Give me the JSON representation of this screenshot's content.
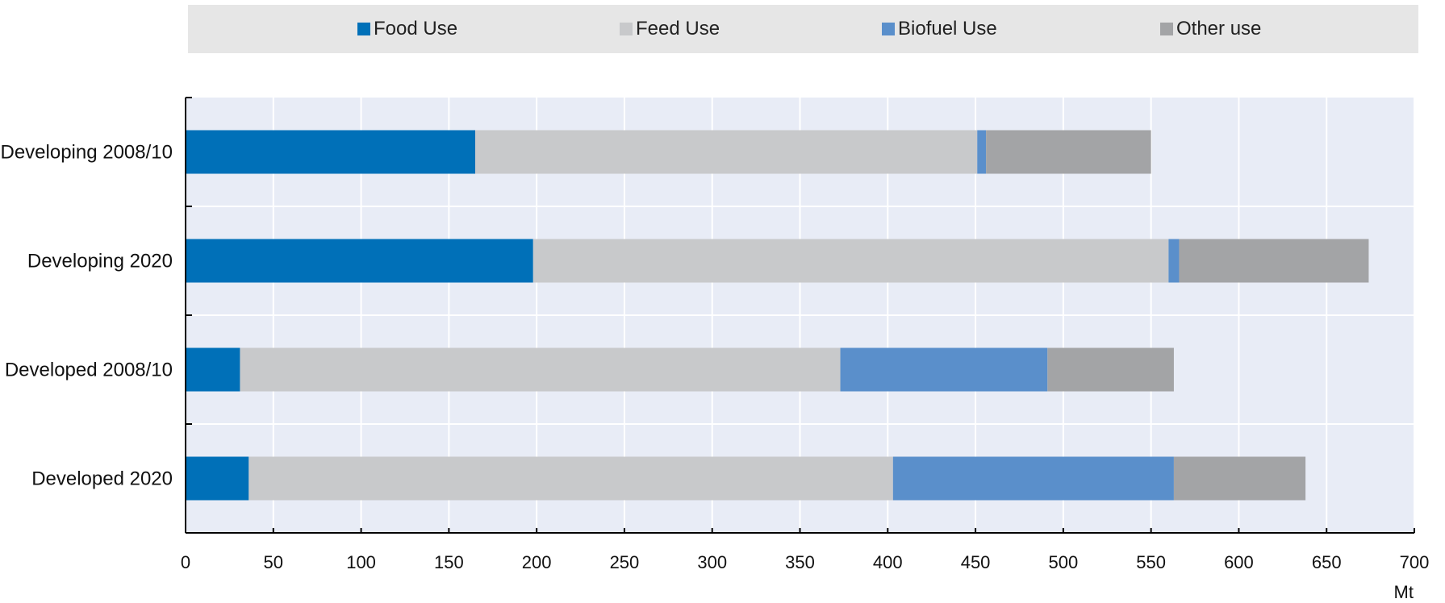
{
  "chart_data": {
    "type": "bar",
    "orientation": "horizontal",
    "stacked": true,
    "categories": [
      "Developing 2008/10",
      "Developing 2020",
      "Developed 2008/10",
      "Developed 2020"
    ],
    "series": [
      {
        "name": "Food Use",
        "color": "#0070b8",
        "values": [
          165,
          198,
          31,
          36
        ]
      },
      {
        "name": "Feed Use",
        "color": "#c8c9cb",
        "values": [
          286,
          362,
          342,
          367
        ]
      },
      {
        "name": "Biofuel Use",
        "color": "#5a8fcb",
        "values": [
          5,
          6,
          118,
          160
        ]
      },
      {
        "name": "Other use",
        "color": "#a3a4a6",
        "values": [
          94,
          108,
          72,
          75
        ]
      }
    ],
    "xlim": [
      0,
      700
    ],
    "xticks": [
      "0",
      "50",
      "100",
      "150",
      "200",
      "250",
      "300",
      "350",
      "400",
      "450",
      "500",
      "550",
      "600",
      "650",
      "700"
    ],
    "xunit": "Mt",
    "grid": true,
    "legend": "top"
  }
}
